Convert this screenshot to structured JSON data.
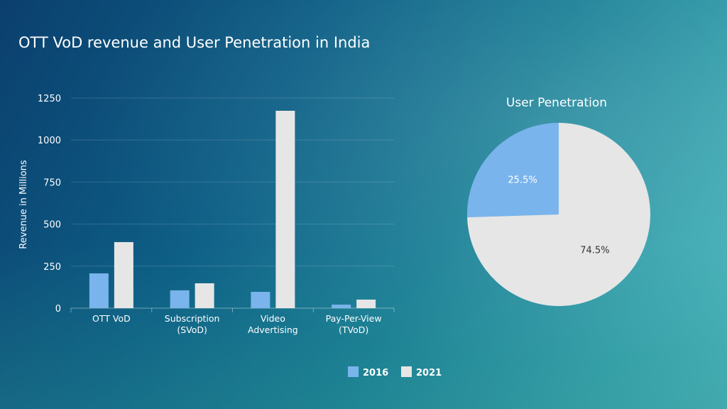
{
  "title": "OTT VoD revenue and User Penetration in India",
  "chart_data": [
    {
      "type": "bar",
      "title": "",
      "ylabel": "Revenue in Millions",
      "xlabel": "",
      "ylim": [
        0,
        1250
      ],
      "yticks": [
        0,
        250,
        500,
        750,
        1000,
        1250
      ],
      "grid": true,
      "categories": [
        [
          "OTT VoD"
        ],
        [
          "Subscription",
          "(SVoD)"
        ],
        [
          "Video",
          "Advertising"
        ],
        [
          "Pay-Per-View",
          "(TVoD)"
        ]
      ],
      "series": [
        {
          "name": "2016",
          "color": "#7ab4ec",
          "values": [
            207,
            106,
            97,
            21
          ]
        },
        {
          "name": "2021",
          "color": "#e6e6e6",
          "values": [
            393,
            148,
            1174,
            51
          ]
        }
      ],
      "legend": "bottom"
    },
    {
      "type": "pie",
      "title": "User Penetration",
      "slices": [
        {
          "label": "25.5%",
          "value": 25.5,
          "color": "#7ab4ec"
        },
        {
          "label": "74.5%",
          "value": 74.5,
          "color": "#e6e6e6"
        }
      ]
    }
  ]
}
